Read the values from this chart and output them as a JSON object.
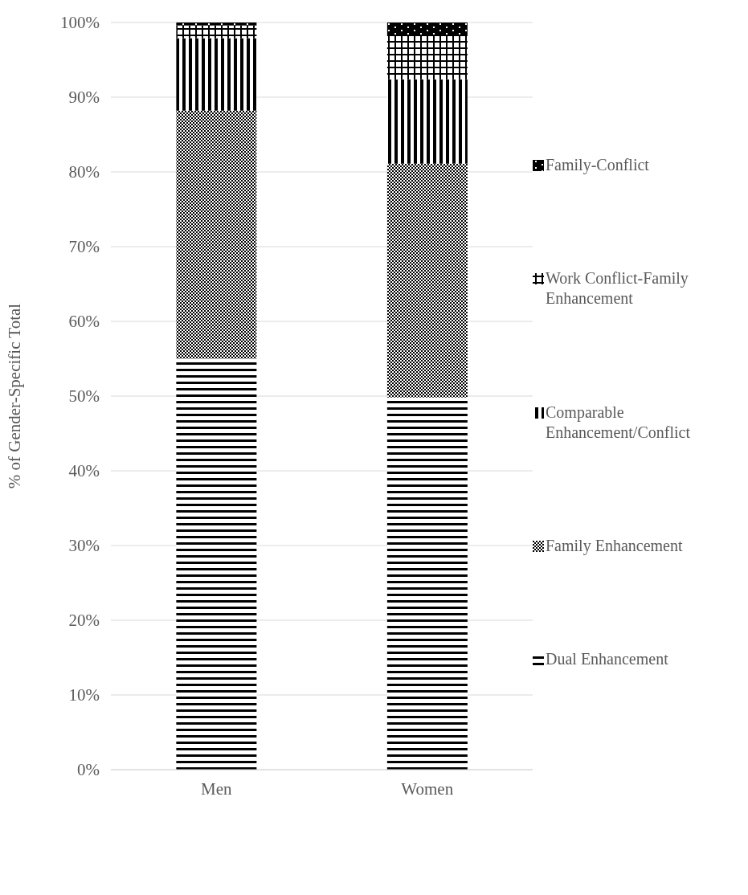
{
  "chart_data": {
    "type": "bar",
    "stacked": true,
    "ylabel": "% of Gender-Specific Total",
    "categories": [
      "Men",
      "Women"
    ],
    "series": [
      {
        "name": "Dual Enhancement",
        "color": "#000000",
        "values": [
          55.0,
          49.8
        ]
      },
      {
        "name": "Family Enhancement",
        "color": "#000000",
        "values": [
          33.2,
          31.3
        ]
      },
      {
        "name": "Comparable Enhancement/Conflict",
        "color": "#000000",
        "values": [
          9.7,
          11.3
        ]
      },
      {
        "name": "Work Conflict-Family Enhancement",
        "color": "#000000",
        "values": [
          1.7,
          6.0
        ]
      },
      {
        "name": "Family-Conflict",
        "color": "#000000",
        "values": [
          0.4,
          1.6
        ]
      }
    ],
    "ylim": [
      0,
      100
    ],
    "yticks": [
      {
        "value": 0,
        "label": "0%"
      },
      {
        "value": 10,
        "label": "10%"
      },
      {
        "value": 20,
        "label": "20%"
      },
      {
        "value": 30,
        "label": "30%"
      },
      {
        "value": 40,
        "label": "40%"
      },
      {
        "value": 50,
        "label": "50%"
      },
      {
        "value": 60,
        "label": "60%"
      },
      {
        "value": 70,
        "label": "70%"
      },
      {
        "value": 80,
        "label": "80%"
      },
      {
        "value": 90,
        "label": "90%"
      },
      {
        "value": 100,
        "label": "100%"
      }
    ],
    "grid": "y",
    "legend": "right"
  }
}
